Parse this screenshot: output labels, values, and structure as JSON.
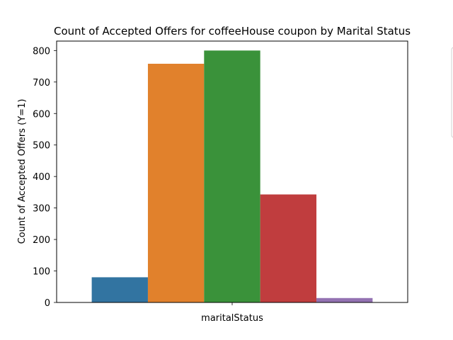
{
  "chart_data": {
    "type": "bar",
    "title": "Count of Accepted Offers for coffeeHouse coupon by Marital Status",
    "xlabel": "maritalStatus",
    "ylabel": "Count of Accepted Offers (Y=1)",
    "categories": [
      "maritalStatus"
    ],
    "ylim": [
      0,
      830
    ],
    "yticks": [
      "0",
      "100",
      "200",
      "300",
      "400",
      "500",
      "600",
      "700",
      "800"
    ],
    "grid": false,
    "legend": "right, partially clipped, no entries readable",
    "series": [
      {
        "values": [
          80
        ],
        "color": "#3274a1"
      },
      {
        "values": [
          758
        ],
        "color": "#e1812c"
      },
      {
        "values": [
          800
        ],
        "color": "#3a923a"
      },
      {
        "values": [
          343
        ],
        "color": "#c03d3e"
      },
      {
        "values": [
          14
        ],
        "color": "#9372b2"
      }
    ]
  }
}
